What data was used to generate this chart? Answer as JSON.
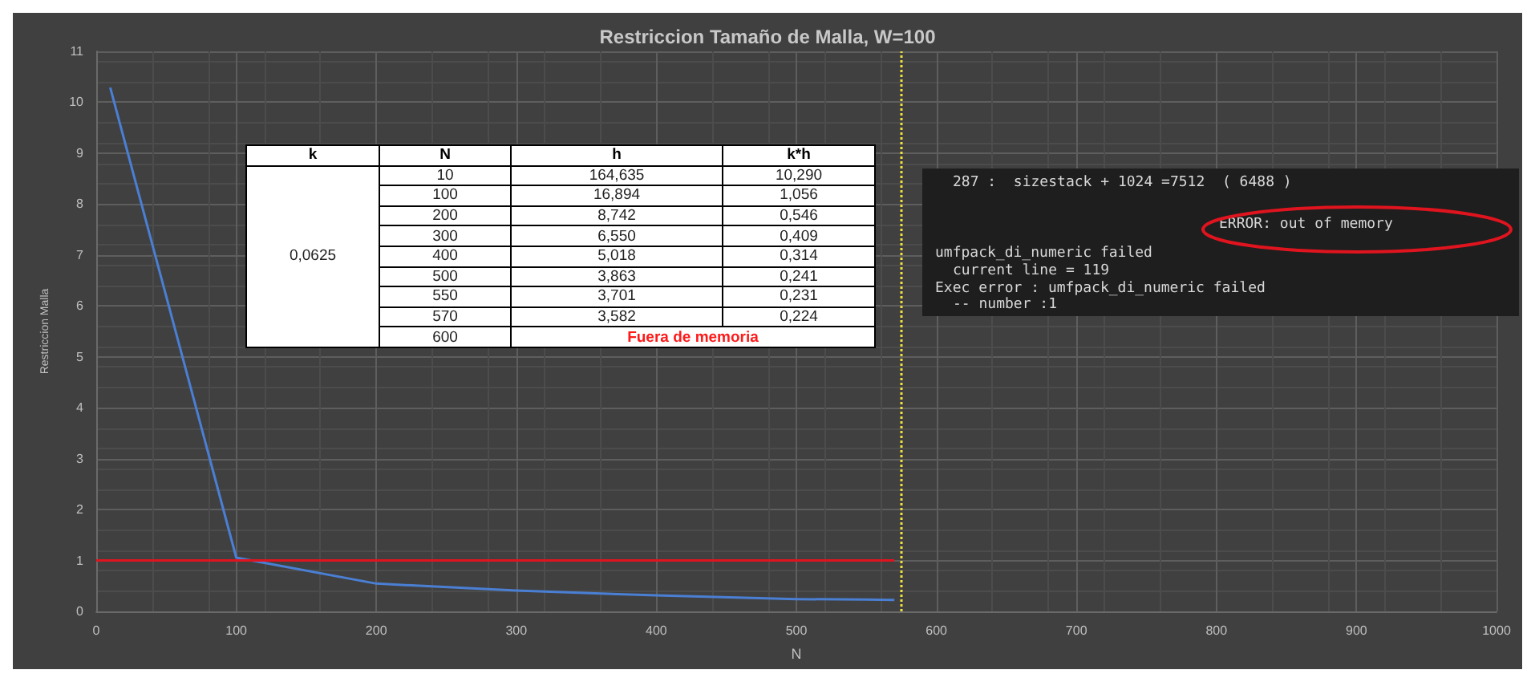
{
  "chart_data": {
    "type": "line",
    "title": "Restriccion Tamaño de Malla, W=100",
    "xlabel": "N",
    "ylabel": "Restriccion Malla",
    "series": [
      {
        "color": "#4a7fd4",
        "x": [
          10,
          100,
          200,
          300,
          400,
          500,
          550,
          570
        ],
        "values": [
          10.29,
          1.056,
          0.546,
          0.409,
          0.314,
          0.241,
          0.231,
          0.224
        ]
      },
      {
        "color": "#e0141e",
        "x": [
          0,
          570
        ],
        "values": [
          1,
          1
        ]
      }
    ],
    "xlim": [
      0,
      1000
    ],
    "xticks": [
      0,
      100,
      200,
      300,
      400,
      500,
      600,
      700,
      800,
      900,
      1000
    ],
    "ylim": [
      0,
      11
    ],
    "yticks": [
      0,
      1,
      2,
      3,
      4,
      5,
      6,
      7,
      8,
      9,
      10,
      11
    ],
    "grid": true,
    "marker": "none",
    "ref_lines": [
      {
        "axis": "x",
        "value": 575,
        "color": "#f0e040",
        "line_style": "dotted"
      }
    ],
    "annotations": [
      "k",
      "N",
      "h",
      "k*h",
      "0,0625",
      "10",
      "164,635",
      "10,290",
      "100",
      "16,894",
      "1,056",
      "200",
      "8,742",
      "0,546",
      "300",
      "6,550",
      "0,409",
      "400",
      "5,018",
      "0,314",
      "500",
      "3,863",
      "0,241",
      "550",
      "3,701",
      "0,231",
      "570",
      "3,582",
      "0,224",
      "600",
      "Fuera de memoria",
      "287 :  sizestack + 1024 =7512  ( 6488 )",
      "ERROR: out of memory",
      "umfpack_di_numeric failed",
      "current line = 119",
      "Exec error : umfpack_di_numeric failed",
      "-- number :1"
    ]
  }
}
